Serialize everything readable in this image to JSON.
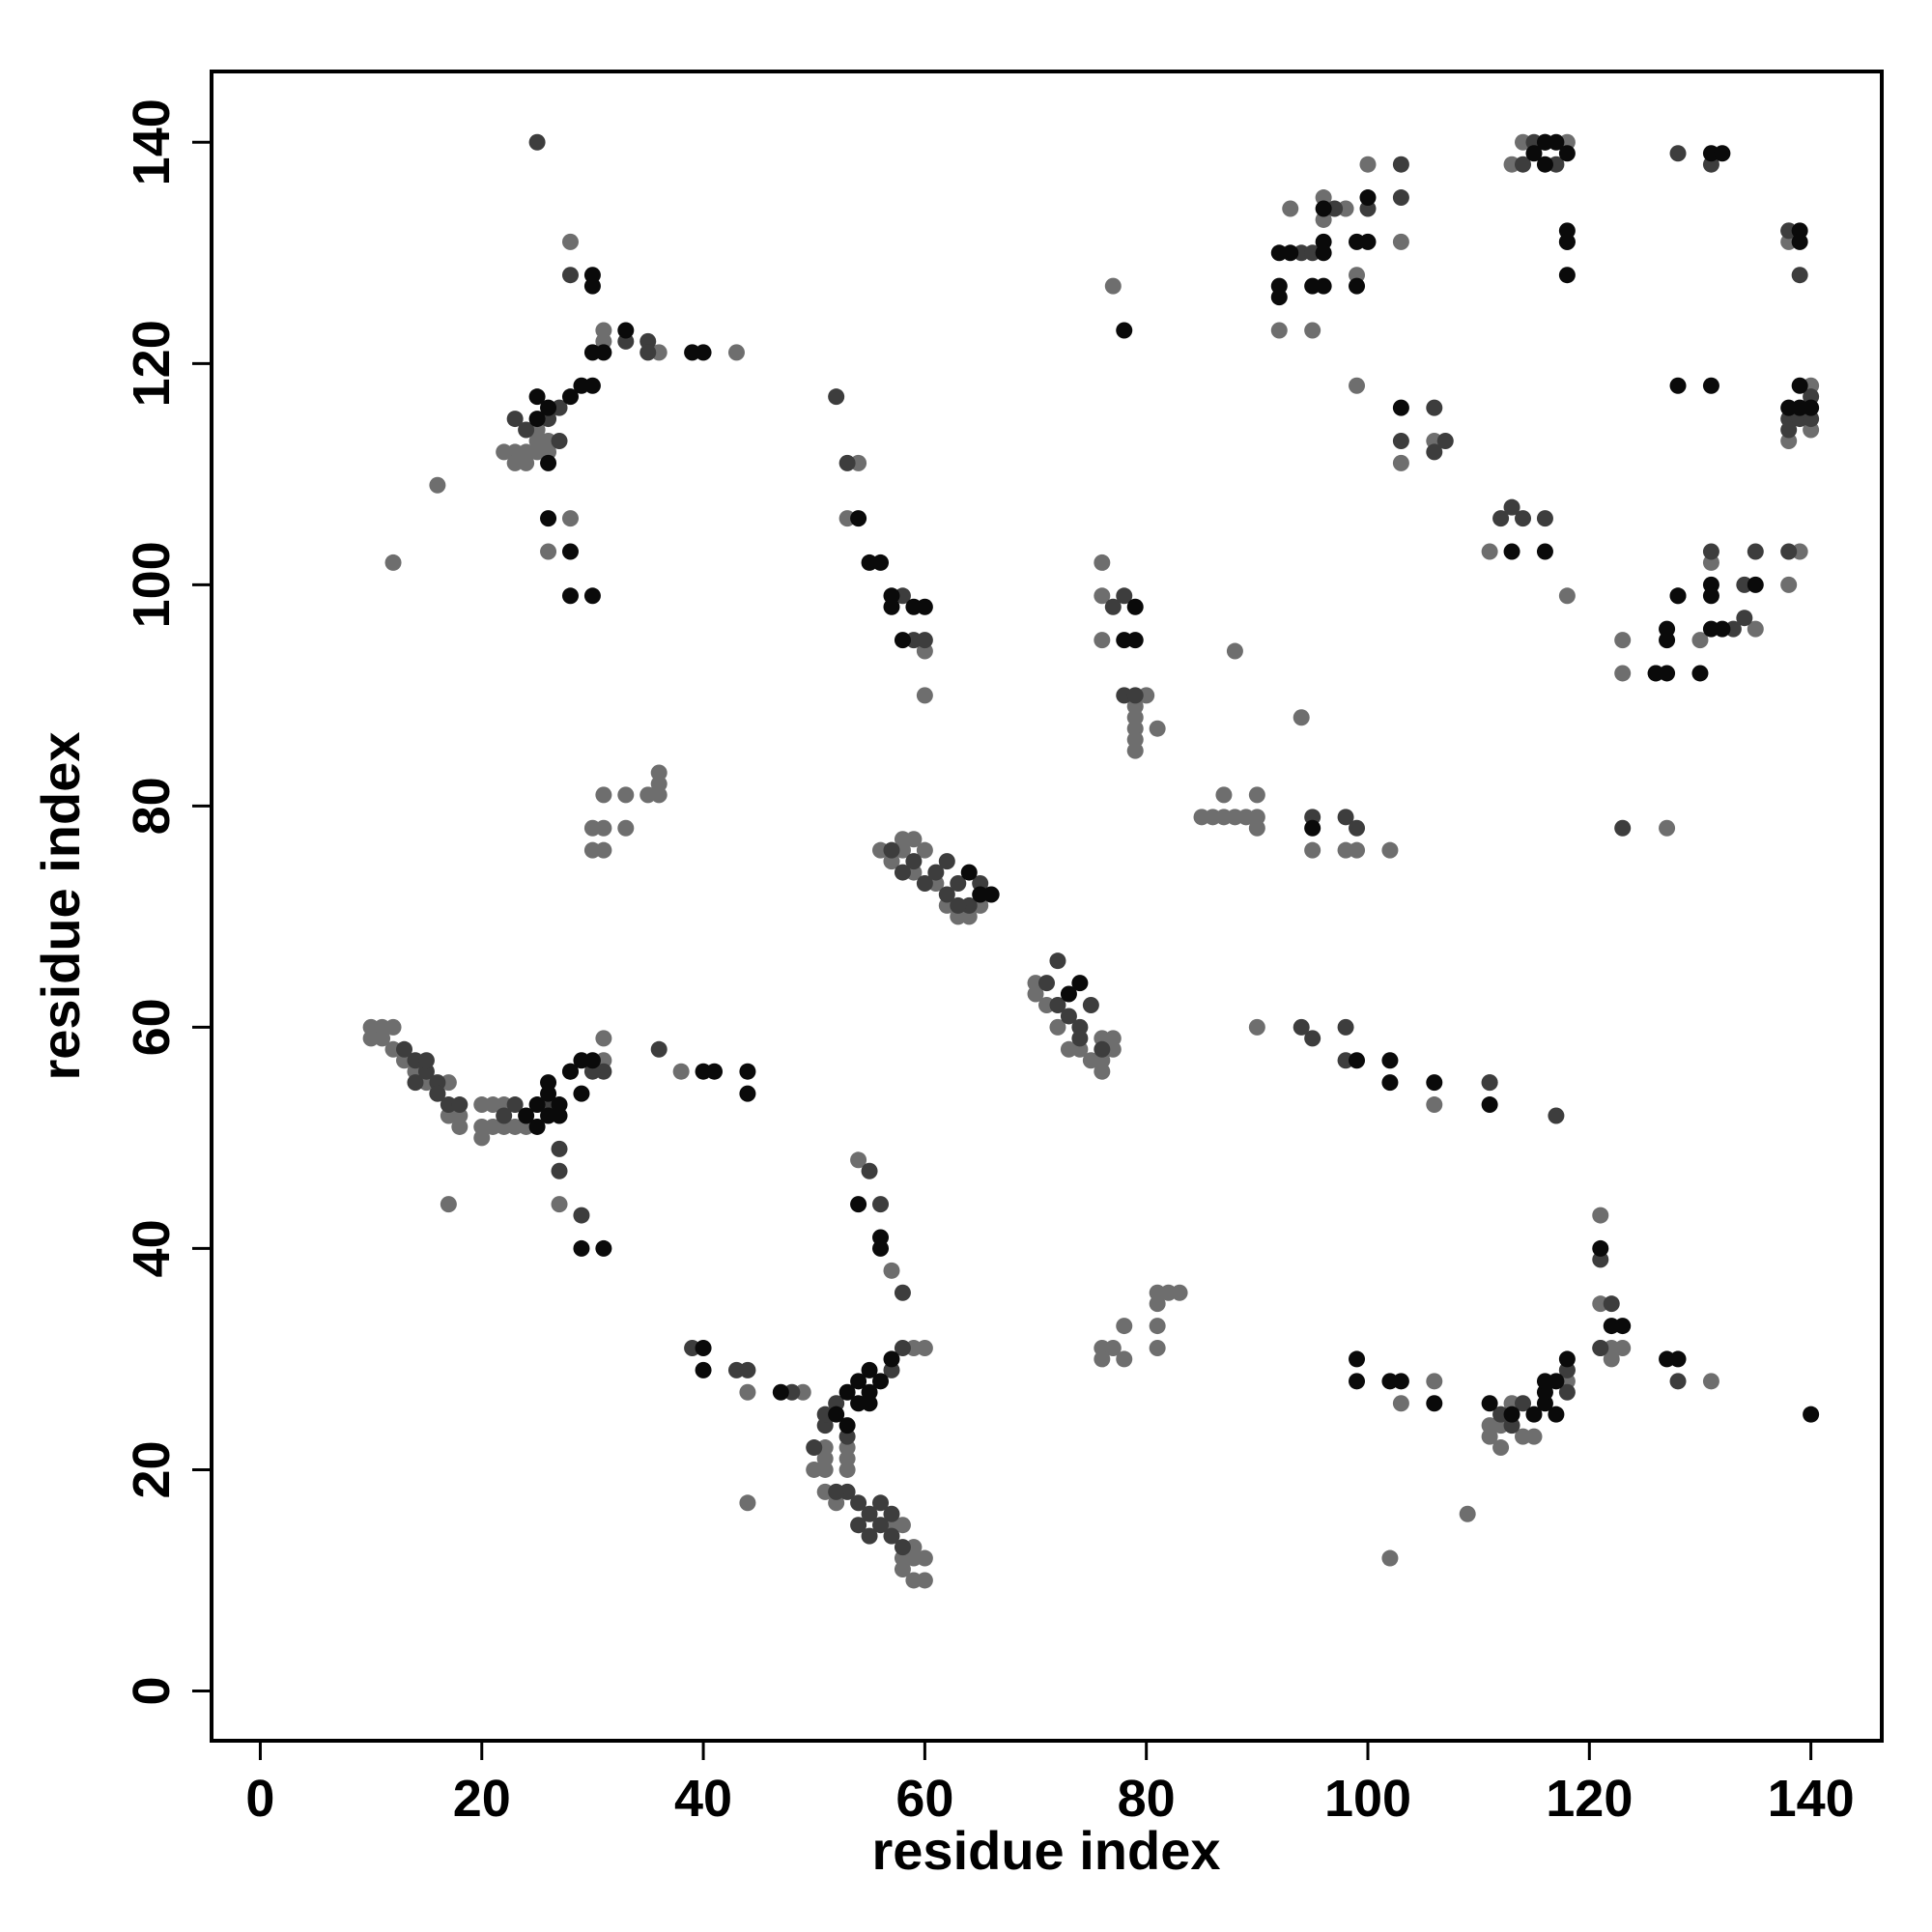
{
  "chart_data": {
    "type": "scatter",
    "xlabel": "residue index",
    "ylabel": "residue index",
    "xlim": [
      -4.4,
      146.4
    ],
    "ylim": [
      -4.5,
      146.4
    ],
    "xticks": [
      0,
      20,
      40,
      60,
      80,
      100,
      120,
      140
    ],
    "yticks": [
      0,
      20,
      40,
      60,
      80,
      100,
      120,
      140
    ],
    "grid": false,
    "series": [
      {
        "color": "#6e6e6e",
        "x": [
          12,
          16,
          17,
          10,
          11,
          12,
          10,
          11,
          12,
          13,
          14,
          15,
          16,
          17,
          17,
          18,
          18,
          20,
          20,
          20,
          21,
          22,
          21,
          22,
          23,
          24,
          23,
          22,
          23,
          24,
          24,
          25,
          25,
          25,
          26,
          26,
          28,
          28,
          31,
          31,
          36,
          43,
          27,
          26,
          30,
          31,
          30,
          31,
          31,
          33,
          33,
          35,
          36,
          36,
          36,
          31,
          31,
          38,
          44,
          44,
          49,
          50,
          51,
          51,
          51,
          51,
          52,
          53,
          53,
          53,
          54,
          57,
          58,
          58,
          59,
          59,
          60,
          60,
          59,
          60,
          58,
          57,
          59,
          54,
          53,
          60,
          60,
          56,
          57,
          58,
          59,
          58,
          60,
          59,
          61,
          62,
          63,
          64,
          65,
          70,
          70,
          71,
          72,
          73,
          74,
          75,
          76,
          76,
          77,
          77,
          76,
          76,
          76,
          76,
          77,
          79,
          79,
          79,
          79,
          79,
          80,
          81,
          88,
          85,
          86,
          87,
          87,
          88,
          89,
          90,
          90,
          90,
          94,
          95,
          98,
          99,
          102,
          90,
          76,
          77,
          78,
          78,
          76,
          81,
          81,
          81,
          81,
          82,
          83,
          92,
          93,
          95,
          96,
          96,
          98,
          99,
          99,
          100,
          103,
          103,
          106,
          111,
          113,
          114,
          118,
          118,
          121,
          121,
          121,
          122,
          123,
          111,
          111,
          112,
          112,
          113,
          114,
          115,
          118,
          118,
          122,
          131,
          109,
          102,
          103,
          106,
          111,
          106,
          123,
          123,
          126,
          128,
          130,
          131,
          138,
          139,
          138,
          138,
          140,
          140,
          138,
          135,
          127
        ],
        "values": [
          102,
          109,
          44,
          60,
          60,
          60,
          59,
          59,
          58,
          57,
          56,
          55,
          54,
          55,
          52,
          51,
          52,
          50,
          51,
          53,
          51,
          51,
          53,
          53,
          51,
          51,
          112,
          112,
          111,
          111,
          112,
          112,
          113,
          114,
          113,
          103,
          106,
          131,
          123,
          122,
          121,
          121,
          44,
          112,
          78,
          78,
          76,
          76,
          81,
          81,
          78,
          81,
          81,
          83,
          82,
          59,
          57,
          56,
          17,
          27,
          27,
          20,
          20,
          21,
          22,
          18,
          17,
          20,
          21,
          22,
          48,
          38,
          12,
          11,
          12,
          10,
          10,
          12,
          31,
          31,
          15,
          15,
          13,
          111,
          106,
          94,
          90,
          76,
          75,
          77,
          77,
          76,
          76,
          74,
          73,
          71,
          70,
          70,
          71,
          64,
          63,
          62,
          60,
          58,
          58,
          57,
          56,
          59,
          59,
          58,
          57,
          102,
          99,
          95,
          127,
          89,
          88,
          87,
          86,
          85,
          90,
          87,
          94,
          79,
          79,
          79,
          81,
          79,
          79,
          79,
          78,
          81,
          88,
          76,
          76,
          76,
          76,
          60,
          31,
          31,
          33,
          30,
          30,
          31,
          33,
          35,
          36,
          36,
          36,
          123,
          134,
          123,
          133,
          135,
          134,
          128,
          118,
          138,
          131,
          111,
          113,
          103,
          138,
          140,
          140,
          99,
          43,
          31,
          35,
          31,
          31,
          23,
          24,
          22,
          24,
          26,
          23,
          23,
          29,
          28,
          30,
          28,
          16,
          12,
          26,
          28,
          55,
          53,
          95,
          92,
          92,
          99,
          95,
          102,
          100,
          103,
          131,
          132,
          118,
          114,
          113,
          96,
          78
        ]
      },
      {
        "color": "#3d3d3d",
        "x": [
          25,
          28,
          24,
          23,
          27,
          27,
          26,
          33,
          35,
          36,
          35,
          13,
          14,
          15,
          16,
          14,
          16,
          17,
          15,
          18,
          23,
          22,
          27,
          27,
          29,
          28,
          31,
          26,
          30,
          50,
          51,
          52,
          53,
          51,
          53,
          54,
          55,
          56,
          56,
          57,
          57,
          58,
          55,
          56,
          58,
          57,
          58,
          39,
          43,
          44,
          48,
          52,
          54,
          55,
          52,
          53,
          58,
          59,
          60,
          57,
          58,
          59,
          60,
          62,
          63,
          64,
          62,
          61,
          63,
          65,
          72,
          71,
          72,
          73,
          74,
          75,
          74,
          76,
          77,
          78,
          78,
          79,
          95,
          98,
          99,
          98,
          95,
          98,
          94,
          94,
          95,
          97,
          100,
          103,
          103,
          103,
          106,
          107,
          106,
          114,
          115,
          116,
          117,
          113,
          112,
          114,
          116,
          118,
          128,
          131,
          131,
          133,
          134,
          134,
          135,
          138,
          138,
          139,
          138,
          138,
          139,
          140,
          140,
          123,
          121,
          122,
          121,
          117,
          118,
          118,
          114,
          112,
          113,
          128,
          111
        ],
        "values": [
          140,
          128,
          114,
          115,
          116,
          113,
          115,
          122,
          122,
          58,
          121,
          58,
          57,
          56,
          55,
          55,
          54,
          53,
          57,
          53,
          53,
          52,
          49,
          47,
          43,
          56,
          56,
          53,
          56,
          22,
          24,
          26,
          23,
          25,
          18,
          17,
          16,
          15,
          17,
          16,
          14,
          13,
          47,
          44,
          36,
          29,
          31,
          31,
          29,
          29,
          27,
          18,
          15,
          14,
          117,
          111,
          99,
          95,
          95,
          76,
          74,
          75,
          73,
          75,
          73,
          71,
          72,
          74,
          71,
          73,
          66,
          64,
          62,
          61,
          60,
          62,
          59,
          58,
          98,
          99,
          90,
          90,
          79,
          79,
          78,
          60,
          59,
          57,
          60,
          130,
          130,
          134,
          134,
          138,
          135,
          113,
          116,
          113,
          112,
          138,
          140,
          140,
          138,
          107,
          106,
          106,
          106,
          131,
          139,
          138,
          103,
          96,
          100,
          97,
          103,
          115,
          114,
          115,
          103,
          132,
          128,
          117,
          115,
          78,
          31,
          35,
          39,
          52,
          29,
          27,
          26,
          25,
          24,
          28,
          55
        ]
      },
      {
        "color": "#0a0a0a",
        "x": [
          25,
          26,
          25,
          26,
          28,
          29,
          30,
          30,
          31,
          30,
          30,
          33,
          39,
          40,
          26,
          28,
          28,
          30,
          26,
          26,
          25,
          27,
          24,
          25,
          28,
          29,
          29,
          30,
          29,
          31,
          27,
          26,
          53,
          54,
          52,
          53,
          55,
          56,
          55,
          54,
          55,
          57,
          56,
          56,
          54,
          40,
          40,
          47,
          54,
          55,
          56,
          57,
          57,
          59,
          60,
          58,
          64,
          65,
          66,
          73,
          74,
          78,
          79,
          79,
          78,
          92,
          93,
          92,
          92,
          95,
          96,
          96,
          96,
          96,
          99,
          100,
          100,
          99,
          103,
          116,
          117,
          115,
          116,
          118,
          118,
          118,
          118,
          131,
          132,
          128,
          131,
          126,
          127,
          127,
          127,
          128,
          130,
          131,
          131,
          131,
          132,
          135,
          139,
          139,
          139,
          139,
          140,
          138,
          95,
          99,
          102,
          102,
          106,
          111,
          113,
          116,
          111,
          113,
          115,
          116,
          116,
          117,
          117,
          116,
          118,
          121,
          122,
          123,
          127,
          128,
          103,
          106,
          99,
          99,
          102,
          140,
          44,
          44,
          40,
          41
        ],
        "values": [
          117,
          116,
          115,
          111,
          117,
          118,
          118,
          121,
          121,
          128,
          127,
          123,
          121,
          121,
          106,
          103,
          99,
          99,
          55,
          54,
          53,
          52,
          52,
          51,
          56,
          54,
          57,
          57,
          40,
          40,
          53,
          52,
          27,
          26,
          25,
          24,
          29,
          28,
          27,
          28,
          26,
          30,
          41,
          40,
          44,
          29,
          31,
          27,
          106,
          102,
          102,
          99,
          98,
          98,
          98,
          95,
          74,
          72,
          72,
          63,
          64,
          95,
          98,
          95,
          123,
          130,
          130,
          127,
          126,
          127,
          127,
          131,
          130,
          134,
          131,
          131,
          135,
          127,
          116,
          140,
          140,
          139,
          138,
          139,
          132,
          131,
          128,
          139,
          139,
          118,
          118,
          92,
          92,
          96,
          95,
          99,
          92,
          100,
          99,
          96,
          96,
          100,
          132,
          131,
          118,
          116,
          116,
          116,
          78,
          57,
          57,
          55,
          55,
          53,
          103,
          103,
          26,
          25,
          25,
          26,
          27,
          25,
          28,
          28,
          30,
          40,
          33,
          33,
          30,
          30,
          28,
          26,
          30,
          28,
          28,
          25,
          54,
          56,
          56,
          56
        ]
      }
    ]
  }
}
